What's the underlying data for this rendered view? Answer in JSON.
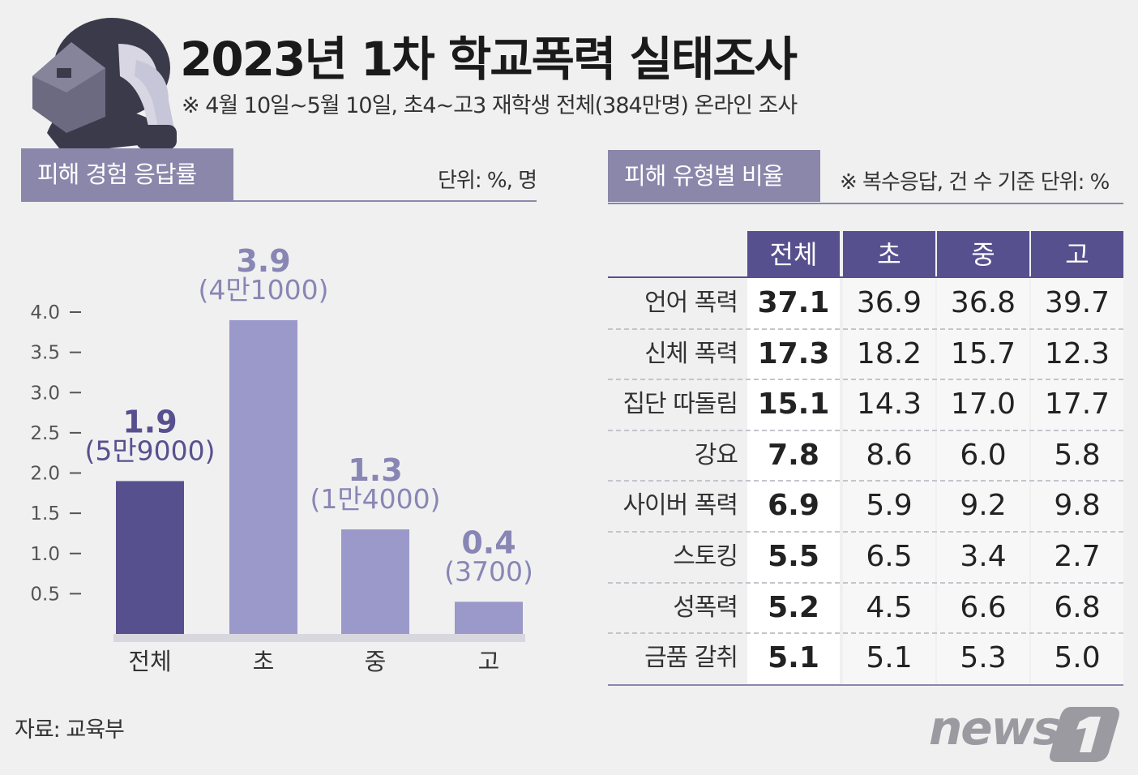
{
  "header": {
    "title": "2023년 1차 학교폭력 실태조사",
    "subtitle": "※ 4월 10일~5월 10일, 초4~고3 재학생 전체(384만명) 온라인 조사"
  },
  "left_section": {
    "tab_label": "피해 경험 응답률",
    "unit": "단위: %, 명"
  },
  "right_section": {
    "tab_label": "피해 유형별 비율",
    "unit": "※ 복수응답, 건 수 기준  단위: %"
  },
  "source": "자료: 교육부",
  "logo_text": "news1",
  "colors": {
    "accent_dark": "#57508f",
    "accent_light": "#9b99c9",
    "tab_bg": "#8a87ab"
  },
  "chart_data": [
    {
      "type": "bar",
      "categories": [
        "전체",
        "초",
        "중",
        "고"
      ],
      "values": [
        1.9,
        3.9,
        1.3,
        0.4
      ],
      "counts": [
        "(5만9000)",
        "(4만1000)",
        "(1만4000)",
        "(3700)"
      ],
      "value_labels": [
        "1.9",
        "3.9",
        "1.3",
        "0.4"
      ],
      "yticks": [
        "0.5",
        "1.0",
        "1.5",
        "2.0",
        "2.5",
        "3.0",
        "3.5",
        "4.0"
      ],
      "ylim": [
        0,
        4.0
      ],
      "grid": false
    },
    {
      "type": "table",
      "columns": [
        "전체",
        "초",
        "중",
        "고"
      ],
      "rows": [
        {
          "label": "언어 폭력",
          "values": [
            "37.1",
            "36.9",
            "36.8",
            "39.7"
          ]
        },
        {
          "label": "신체 폭력",
          "values": [
            "17.3",
            "18.2",
            "15.7",
            "12.3"
          ]
        },
        {
          "label": "집단 따돌림",
          "values": [
            "15.1",
            "14.3",
            "17.0",
            "17.7"
          ]
        },
        {
          "label": "강요",
          "values": [
            "7.8",
            "8.6",
            "6.0",
            "5.8"
          ]
        },
        {
          "label": "사이버 폭력",
          "values": [
            "6.9",
            "5.9",
            "9.2",
            "9.8"
          ]
        },
        {
          "label": "스토킹",
          "values": [
            "5.5",
            "6.5",
            "3.4",
            "2.7"
          ]
        },
        {
          "label": "성폭력",
          "values": [
            "5.2",
            "4.5",
            "6.6",
            "6.8"
          ]
        },
        {
          "label": "금품 갈취",
          "values": [
            "5.1",
            "5.1",
            "5.3",
            "5.0"
          ]
        }
      ]
    }
  ]
}
